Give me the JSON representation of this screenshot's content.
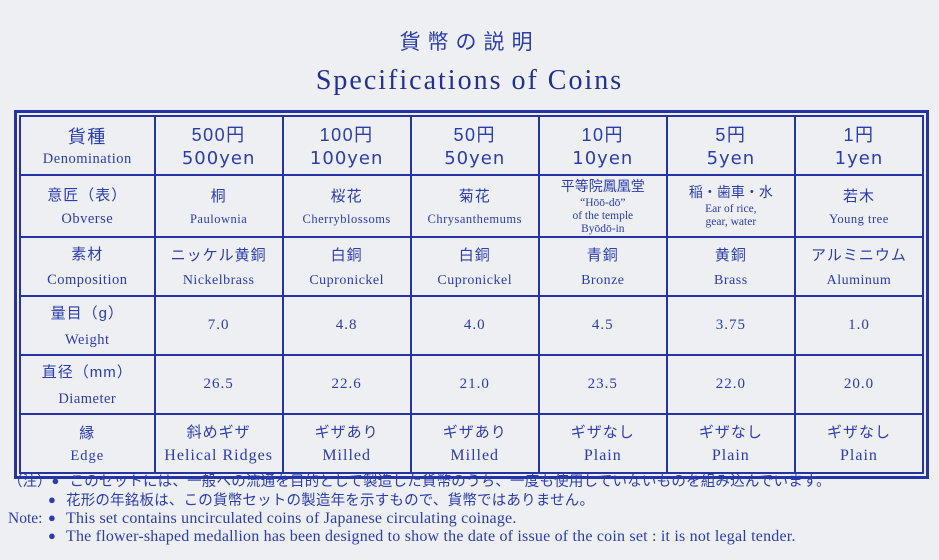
{
  "titles": {
    "ja": "貨幣の説明",
    "en": "Specifications of Coins"
  },
  "colors": {
    "background": "#edeff3",
    "ink_blue": "#2b3cac",
    "border_blue": "#2434a4"
  },
  "table": {
    "rows": [
      {
        "label_ja": "貨種",
        "label_en": "Denomination",
        "cells": [
          {
            "ja": "500円",
            "en": "500yen"
          },
          {
            "ja": "100円",
            "en": "100yen"
          },
          {
            "ja": "50円",
            "en": "50yen"
          },
          {
            "ja": "10円",
            "en": "10yen"
          },
          {
            "ja": "5円",
            "en": "5yen"
          },
          {
            "ja": "1円",
            "en": "1yen"
          }
        ]
      },
      {
        "label_ja": "意匠（表）",
        "label_en": "Obverse",
        "cells": [
          {
            "ja": "桐",
            "en": "Paulownia"
          },
          {
            "ja": "桜花",
            "en": "Cherryblossoms"
          },
          {
            "ja": "菊花",
            "en": "Chrysanthemums"
          },
          {
            "ja": "平等院鳳凰堂",
            "en": "“Hōō-dō”\nof the temple\nByōdō-in"
          },
          {
            "ja": "稲・歯車・水",
            "en": "Ear of rice,\ngear, water"
          },
          {
            "ja": "若木",
            "en": "Young tree"
          }
        ]
      },
      {
        "label_ja": "素材",
        "label_en": "Composition",
        "cells": [
          {
            "ja": "ニッケル黄銅",
            "en": "Nickelbrass"
          },
          {
            "ja": "白銅",
            "en": "Cupronickel"
          },
          {
            "ja": "白銅",
            "en": "Cupronickel"
          },
          {
            "ja": "青銅",
            "en": "Bronze"
          },
          {
            "ja": "黄銅",
            "en": "Brass"
          },
          {
            "ja": "アルミニウム",
            "en": "Aluminum"
          }
        ]
      },
      {
        "label_ja": "量目（g）",
        "label_en": "Weight",
        "cells": [
          {
            "value": "7.0"
          },
          {
            "value": "4.8"
          },
          {
            "value": "4.0"
          },
          {
            "value": "4.5"
          },
          {
            "value": "3.75"
          },
          {
            "value": "1.0"
          }
        ]
      },
      {
        "label_ja": "直径（mm）",
        "label_en": "Diameter",
        "cells": [
          {
            "value": "26.5"
          },
          {
            "value": "22.6"
          },
          {
            "value": "21.0"
          },
          {
            "value": "23.5"
          },
          {
            "value": "22.0"
          },
          {
            "value": "20.0"
          }
        ]
      },
      {
        "label_ja": "縁",
        "label_en": "Edge",
        "cells": [
          {
            "ja": "斜めギザ",
            "en": "Helical Ridges"
          },
          {
            "ja": "ギザあり",
            "en": "Milled"
          },
          {
            "ja": "ギザあり",
            "en": "Milled"
          },
          {
            "ja": "ギザなし",
            "en": "Plain"
          },
          {
            "ja": "ギザなし",
            "en": "Plain"
          },
          {
            "ja": "ギザなし",
            "en": "Plain"
          }
        ]
      }
    ]
  },
  "notes": {
    "lines": [
      {
        "label": "（注）",
        "bullet": "●",
        "lang": "ja",
        "text": "このセットには、一般への流通を目的として製造した貨幣のうち、一度も使用していないものを組み込んでいます。"
      },
      {
        "label": "",
        "bullet": "●",
        "lang": "ja",
        "text": "花形の年銘板は、この貨幣セットの製造年を示すもので、貨幣ではありません。"
      },
      {
        "label": "Note:",
        "bullet": "●",
        "lang": "en",
        "text": "This set contains uncirculated coins of Japanese circulating coinage."
      },
      {
        "label": "",
        "bullet": "●",
        "lang": "en",
        "text": "The flower-shaped medallion has been designed to show the date of issue of the coin set : it is not legal tender."
      }
    ]
  }
}
